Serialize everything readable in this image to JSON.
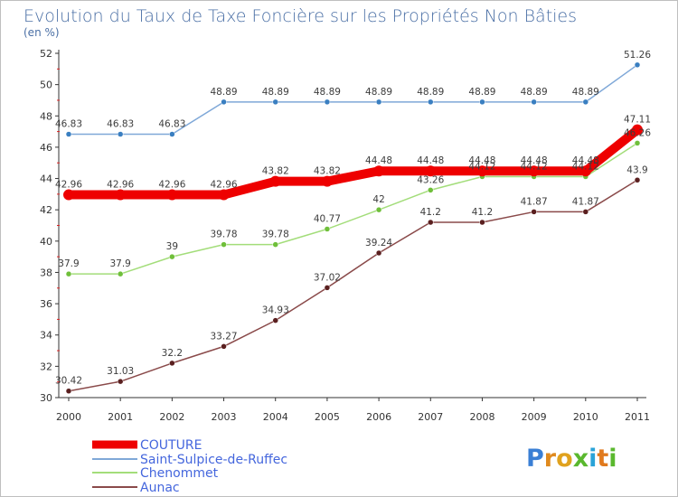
{
  "chart_data": {
    "type": "line",
    "title": "Evolution du Taux de Taxe Foncière sur les Propriétés Non Bâties",
    "unit_label": "(en %)",
    "xlabel": "",
    "ylabel": "(en %)",
    "ylim": [
      30,
      52
    ],
    "yticks": [
      30,
      32,
      34,
      36,
      38,
      40,
      42,
      44,
      46,
      48,
      50,
      52
    ],
    "categories": [
      "2000",
      "2001",
      "2002",
      "2003",
      "2004",
      "2005",
      "2006",
      "2007",
      "2008",
      "2009",
      "2010",
      "2011"
    ],
    "series": [
      {
        "name": "COUTURE",
        "color": "#ee0000",
        "marker_color": "#ee0000",
        "values": [
          42.96,
          42.96,
          42.96,
          42.96,
          43.82,
          43.82,
          44.48,
          44.48,
          44.48,
          44.48,
          44.48,
          47.11
        ],
        "labels": [
          "42.96",
          "42.96",
          "42.96",
          "42.96",
          "43.82",
          "43.82",
          "44.48",
          "44.48",
          "44.48",
          "44.48",
          "44.48",
          "47.11"
        ]
      },
      {
        "name": "Saint-Sulpice-de-Ruffec",
        "color": "#7fa8d8",
        "marker_color": "#3a7fc1",
        "values": [
          46.83,
          46.83,
          46.83,
          48.89,
          48.89,
          48.89,
          48.89,
          48.89,
          48.89,
          48.89,
          48.89,
          51.26
        ],
        "labels": [
          "46.83",
          "46.83",
          "46.83",
          "48.89",
          "48.89",
          "48.89",
          "48.89",
          "48.89",
          "48.89",
          "48.89",
          "48.89",
          "51.26"
        ]
      },
      {
        "name": "Chenommet",
        "color": "#a3dd7a",
        "marker_color": "#6fbf3a",
        "values": [
          37.9,
          37.9,
          39.0,
          39.78,
          39.78,
          40.77,
          42.0,
          43.26,
          44.12,
          44.12,
          44.12,
          46.26
        ],
        "labels": [
          "37.9",
          "37.9",
          "39",
          "39.78",
          "39.78",
          "40.77",
          "42",
          "43.26",
          "44.12",
          "44.12",
          "44.12",
          "46.26"
        ]
      },
      {
        "name": "Aunac",
        "color": "#8a4a4a",
        "marker_color": "#5a1f1f",
        "values": [
          30.42,
          31.03,
          32.2,
          33.27,
          34.93,
          37.02,
          39.24,
          41.2,
          41.2,
          41.87,
          41.87,
          43.9
        ],
        "labels": [
          "30.42",
          "31.03",
          "32.2",
          "33.27",
          "34.93",
          "37.02",
          "39.24",
          "41.2",
          "41.2",
          "41.87",
          "41.87",
          "43.9"
        ]
      }
    ],
    "legend_position": "bottom-left",
    "grid": false
  },
  "brand": {
    "logo_letters": [
      "P",
      "r",
      "o",
      "x",
      "i",
      "t",
      "i"
    ],
    "logo_colors": [
      "#3a7fd5",
      "#e08a1e",
      "#e0a21e",
      "#5ab82e",
      "#2aa3d8",
      "#e07a1e",
      "#5ab82e"
    ]
  }
}
